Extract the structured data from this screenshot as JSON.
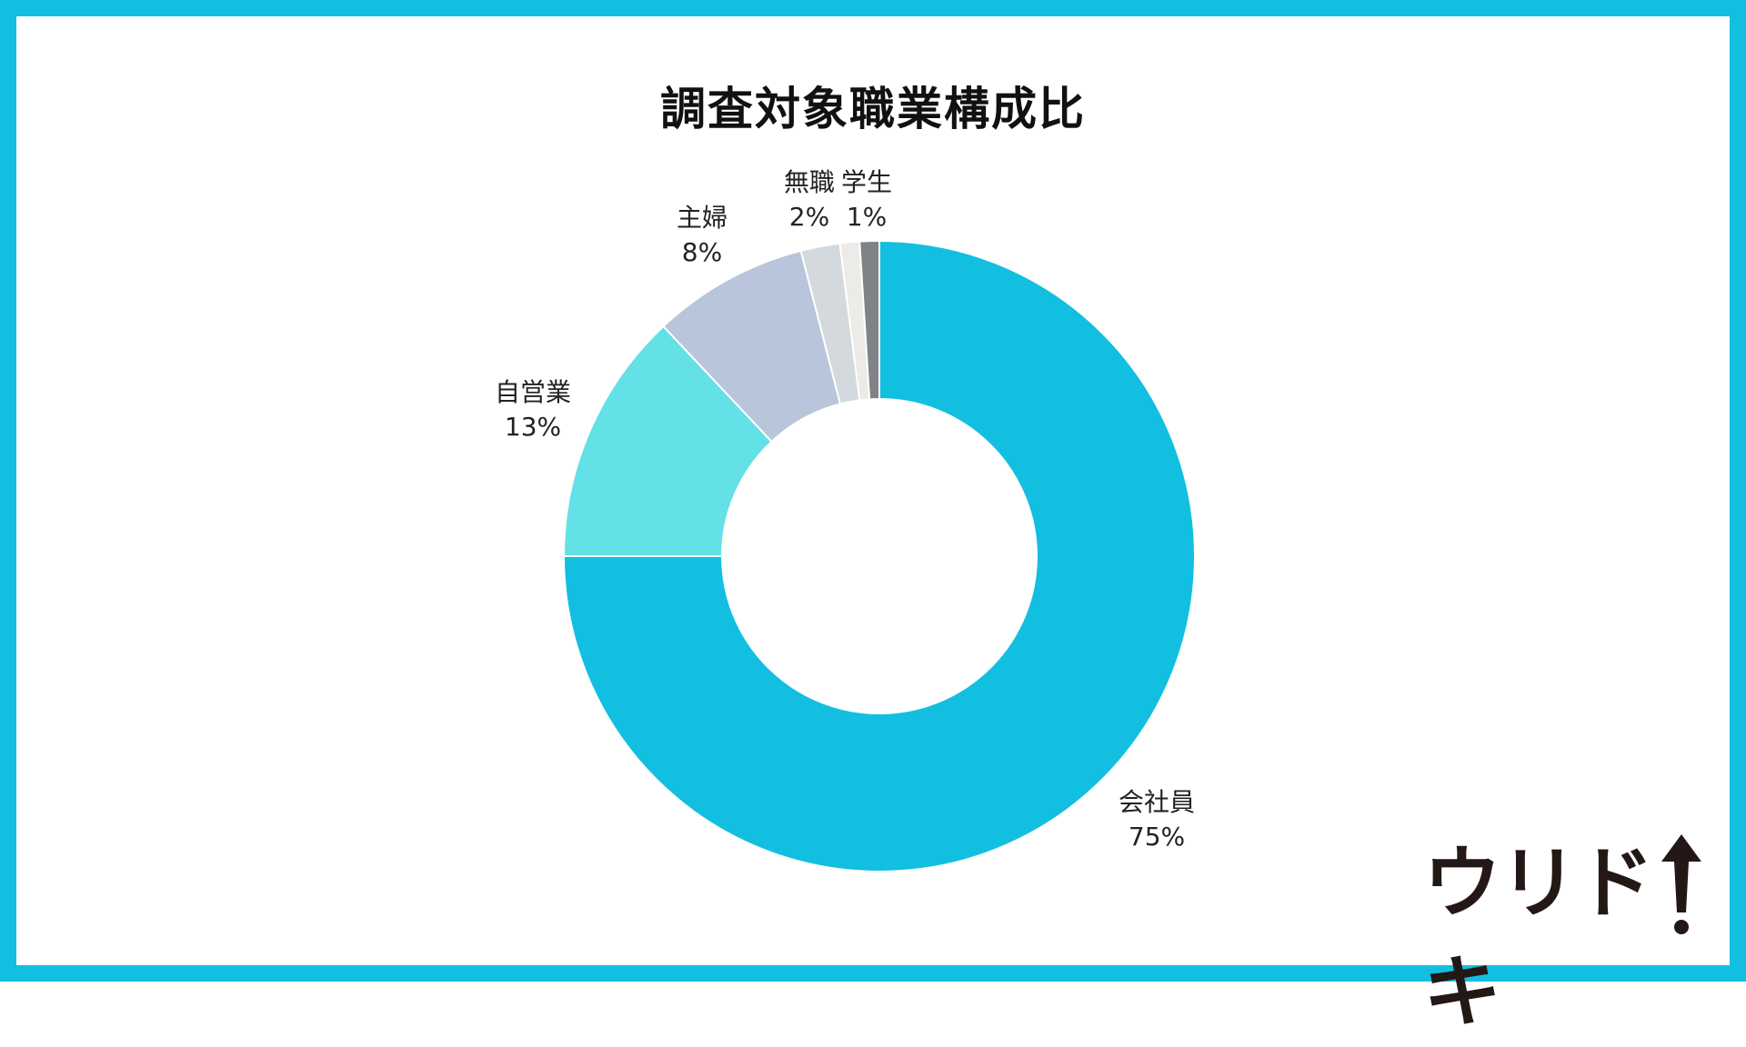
{
  "chart_data": {
    "type": "pie",
    "title": "調査対象職業構成比",
    "slices": [
      {
        "label": "会社員",
        "value": 75,
        "value_label": "75%",
        "color": "#12bfe0"
      },
      {
        "label": "自営業",
        "value": 13,
        "value_label": "13%",
        "color": "#63e1e6"
      },
      {
        "label": "主婦",
        "value": 8,
        "value_label": "8%",
        "color": "#b9c5da"
      },
      {
        "label": "無職",
        "value": 2,
        "value_label": "2%",
        "color": "#d3d9dc"
      },
      {
        "label": "学生",
        "value": 1,
        "value_label": "1%",
        "color": "#ecebe7"
      },
      {
        "label": "",
        "value": 1,
        "value_label": "",
        "color": "#7f8388"
      }
    ],
    "donut": true
  },
  "logo": {
    "text": "ウリドキ"
  },
  "colors": {
    "frame": "#12bfe0",
    "background": "#ffffff"
  }
}
